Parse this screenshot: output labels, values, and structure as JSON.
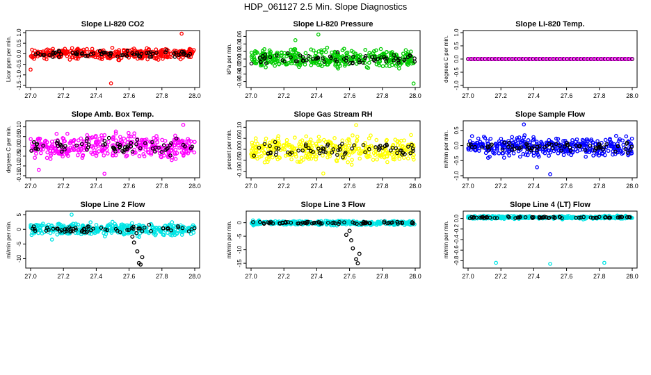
{
  "title": "HDP_061127  2.5 Min. Slope Diagnostics",
  "colors": {
    "black": "#000000"
  },
  "chart_data": [
    {
      "type": "scatter",
      "title": "Slope Li-820 CO2",
      "ylabel": "Licor ppm per min.",
      "color": "#ff0000",
      "xlim": [
        27.0,
        28.0
      ],
      "ylim": [
        -1.5,
        1.0
      ],
      "xticks": [
        "27.0",
        "27.2",
        "27.4",
        "27.6",
        "27.8",
        "28.0"
      ],
      "yticks": [
        -1.5,
        -1.0,
        -0.5,
        0.0,
        0.5,
        1.0
      ],
      "ytick_labels": [
        "-1.5",
        "-1.0",
        "-0.5",
        "0.0",
        "0.5",
        "1.0"
      ],
      "band": [
        -0.35,
        0.35
      ],
      "outliers": [
        [
          27.49,
          -1.4
        ],
        [
          27.92,
          0.95
        ],
        [
          27.0,
          -0.75
        ]
      ],
      "black_spikes": []
    },
    {
      "type": "scatter",
      "title": "Slope Li-820 Pressure",
      "ylabel": "kPa per min.",
      "color": "#00cc00",
      "xlim": [
        27.0,
        28.0
      ],
      "ylim": [
        -0.07,
        0.07
      ],
      "xticks": [
        "27.0",
        "27.2",
        "27.4",
        "27.6",
        "27.8",
        "28.0"
      ],
      "yticks": [
        -0.06,
        -0.04,
        -0.02,
        0.0,
        0.02,
        0.04,
        0.06
      ],
      "ytick_labels": [
        "-0.06",
        "-0.04",
        "-0.02",
        "0.00",
        "0.02",
        "0.04",
        "0.06"
      ],
      "band": [
        -0.035,
        0.035
      ],
      "outliers": [
        [
          27.41,
          0.065
        ],
        [
          27.99,
          -0.065
        ],
        [
          27.27,
          0.05
        ]
      ],
      "black_spikes": []
    },
    {
      "type": "scatter",
      "title": "Slope Li-820 Temp.",
      "ylabel": "degrees C per min.",
      "color": "#ff00ff",
      "xlim": [
        27.0,
        28.0
      ],
      "ylim": [
        -1.0,
        1.0
      ],
      "xticks": [
        "27.0",
        "27.2",
        "27.4",
        "27.6",
        "27.8",
        "28.0"
      ],
      "yticks": [
        -1.0,
        -0.5,
        0.0,
        0.5,
        1.0
      ],
      "ytick_labels": [
        "-1.0",
        "-0.5",
        "0.0",
        "0.5",
        "1.0"
      ],
      "band": [
        0,
        0
      ],
      "outliers": [],
      "black_spikes": []
    },
    {
      "type": "scatter",
      "title": "Slope Amb. Box Temp.",
      "ylabel": "degrees C per min.",
      "color": "#ff00ff",
      "xlim": [
        27.0,
        28.0
      ],
      "ylim": [
        -0.15,
        0.12
      ],
      "xticks": [
        "27.0",
        "27.2",
        "27.4",
        "27.6",
        "27.8",
        "28.0"
      ],
      "yticks": [
        -0.15,
        -0.1,
        -0.05,
        0.0,
        0.05,
        0.1
      ],
      "ytick_labels": [
        "-0.15",
        "-0.10",
        "-0.05",
        "0.00",
        "0.05",
        "0.10"
      ],
      "band": [
        -0.09,
        0.09
      ],
      "outliers": [
        [
          27.45,
          -0.14
        ],
        [
          27.93,
          0.11
        ],
        [
          27.05,
          -0.12
        ]
      ],
      "black_spikes": []
    },
    {
      "type": "scatter",
      "title": "Slope Gas Stream RH",
      "ylabel": "percent per min.",
      "color": "#ffff00",
      "xlim": [
        27.0,
        28.0
      ],
      "ylim": [
        -0.12,
        0.12
      ],
      "xticks": [
        "27.0",
        "27.2",
        "27.4",
        "27.6",
        "27.8",
        "28.0"
      ],
      "yticks": [
        -0.1,
        -0.05,
        0.0,
        0.05,
        0.1
      ],
      "ytick_labels": [
        "-0.10",
        "-0.05",
        "0.00",
        "0.05",
        "0.10"
      ],
      "band": [
        -0.08,
        0.08
      ],
      "outliers": [
        [
          27.64,
          0.11
        ],
        [
          27.44,
          -0.11
        ]
      ],
      "black_spikes": []
    },
    {
      "type": "scatter",
      "title": "Slope Sample Flow",
      "ylabel": "ml/min per min.",
      "color": "#0000ff",
      "xlim": [
        27.0,
        28.0
      ],
      "ylim": [
        -1.0,
        0.75
      ],
      "xticks": [
        "27.0",
        "27.2",
        "27.4",
        "27.6",
        "27.8",
        "28.0"
      ],
      "yticks": [
        -1.0,
        -0.5,
        0.0,
        0.5
      ],
      "ytick_labels": [
        "-1.0",
        "-0.5",
        "0.0",
        "0.5"
      ],
      "band": [
        -0.5,
        0.4
      ],
      "outliers": [
        [
          27.34,
          0.7
        ],
        [
          27.5,
          -0.95
        ],
        [
          27.42,
          -0.72
        ]
      ],
      "black_spikes": []
    },
    {
      "type": "scatter",
      "title": "Slope Line 2 Flow",
      "ylabel": "ml/min per min.",
      "color": "#00e5e5",
      "xlim": [
        27.0,
        28.0
      ],
      "ylim": [
        -12.5,
        5.5
      ],
      "xticks": [
        "27.0",
        "27.2",
        "27.4",
        "27.6",
        "27.8",
        "28.0"
      ],
      "yticks": [
        -10,
        -5,
        0,
        5
      ],
      "ytick_labels": [
        "-10",
        "-5",
        "0",
        "5"
      ],
      "band": [
        -3,
        3
      ],
      "outliers": [
        [
          27.25,
          5
        ],
        [
          27.13,
          -3.5
        ]
      ],
      "black_spikes": [
        [
          27.62,
          -2.5
        ],
        [
          27.63,
          -4.5
        ],
        [
          27.65,
          -7.5
        ],
        [
          27.66,
          -11.5
        ],
        [
          27.67,
          -12
        ],
        [
          27.68,
          -9.5
        ]
      ]
    },
    {
      "type": "scatter",
      "title": "Slope Line 3 Flow",
      "ylabel": "ml/min per min.",
      "color": "#00e5e5",
      "xlim": [
        27.0,
        28.0
      ],
      "ylim": [
        -16,
        3.5
      ],
      "xticks": [
        "27.0",
        "27.2",
        "27.4",
        "27.6",
        "27.8",
        "28.0"
      ],
      "yticks": [
        -15,
        -10,
        -5,
        0
      ],
      "ytick_labels": [
        "-15",
        "-10",
        "-5",
        "0"
      ],
      "band": [
        -1.2,
        1.0
      ],
      "outliers": [],
      "black_spikes": [
        [
          27.6,
          -3
        ],
        [
          27.61,
          -6.5
        ],
        [
          27.62,
          -9.5
        ],
        [
          27.64,
          -13.5
        ],
        [
          27.65,
          -15
        ],
        [
          27.66,
          -11.5
        ],
        [
          27.58,
          -4.5
        ]
      ]
    },
    {
      "type": "scatter",
      "title": "Slope Line 4 (LT) Flow",
      "ylabel": "ml/min per min.",
      "color": "#00e5e5",
      "xlim": [
        27.0,
        28.0
      ],
      "ylim": [
        -0.9,
        0.1
      ],
      "xticks": [
        "27.0",
        "27.2",
        "27.4",
        "27.6",
        "27.8",
        "28.0"
      ],
      "yticks": [
        -0.8,
        -0.6,
        -0.4,
        -0.2,
        0.0
      ],
      "ytick_labels": [
        "-0.8",
        "-0.6",
        "-0.4",
        "-0.2",
        "0.0"
      ],
      "band": [
        -0.02,
        0.06
      ],
      "outliers": [
        [
          27.17,
          -0.84
        ],
        [
          27.5,
          -0.86
        ],
        [
          27.83,
          -0.84
        ]
      ],
      "black_spikes": []
    }
  ]
}
